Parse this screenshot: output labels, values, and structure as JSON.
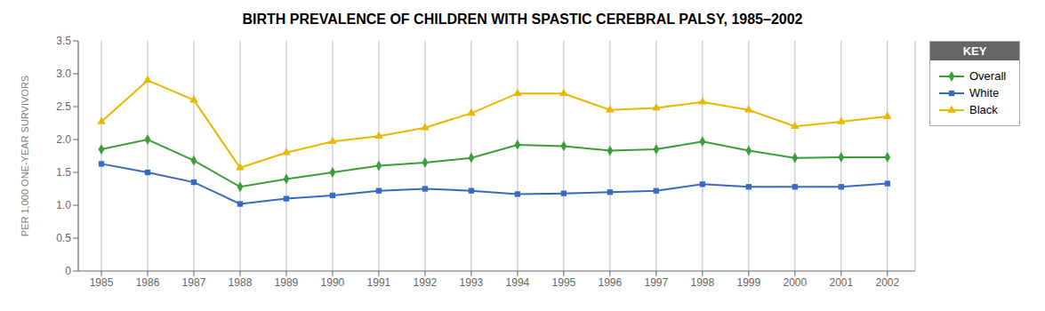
{
  "chart_data": {
    "type": "line",
    "title": "BIRTH PREVALENCE OF CHILDREN WITH SPASTIC CEREBRAL PALSY, 1985–2002",
    "ylabel": "PER 1,000 ONE-YEAR SURVIVORS",
    "x": [
      1985,
      1986,
      1987,
      1988,
      1989,
      1990,
      1991,
      1992,
      1993,
      1994,
      1995,
      1996,
      1997,
      1998,
      1999,
      2000,
      2001,
      2002
    ],
    "series": [
      {
        "name": "Overall",
        "color": "#3a9e3a",
        "marker": "diamond",
        "values": [
          1.85,
          2.0,
          1.68,
          1.28,
          1.4,
          1.5,
          1.6,
          1.65,
          1.72,
          1.92,
          1.9,
          1.83,
          1.85,
          1.97,
          1.83,
          1.72,
          1.73,
          1.73
        ]
      },
      {
        "name": "White",
        "color": "#3a6abf",
        "marker": "square",
        "values": [
          1.63,
          1.5,
          1.35,
          1.02,
          1.1,
          1.15,
          1.22,
          1.25,
          1.22,
          1.17,
          1.18,
          1.2,
          1.22,
          1.32,
          1.28,
          1.28,
          1.28,
          1.33
        ]
      },
      {
        "name": "Black",
        "color": "#e8b800",
        "marker": "triangle",
        "values": [
          2.27,
          2.9,
          2.6,
          1.57,
          1.8,
          1.97,
          2.05,
          2.18,
          2.4,
          2.7,
          2.7,
          2.45,
          2.48,
          2.57,
          2.45,
          2.2,
          2.27,
          2.35
        ]
      }
    ],
    "xlim": [
      1984.5,
      2002.6
    ],
    "xticks": [
      1985,
      1986,
      1987,
      1988,
      1989,
      1990,
      1991,
      1992,
      1993,
      1994,
      1995,
      1996,
      1997,
      1998,
      1999,
      2000,
      2001,
      2002
    ],
    "ylim": [
      0,
      3.5
    ],
    "yticks": [
      0,
      0.5,
      {
        "value": 1,
        "label": "1.0"
      },
      1.5,
      {
        "value": 2,
        "label": "2.0"
      },
      2.5,
      {
        "value": 3,
        "label": "3.0"
      },
      3.5
    ],
    "grid": "x",
    "legend": "right",
    "legend_title": "KEY"
  }
}
